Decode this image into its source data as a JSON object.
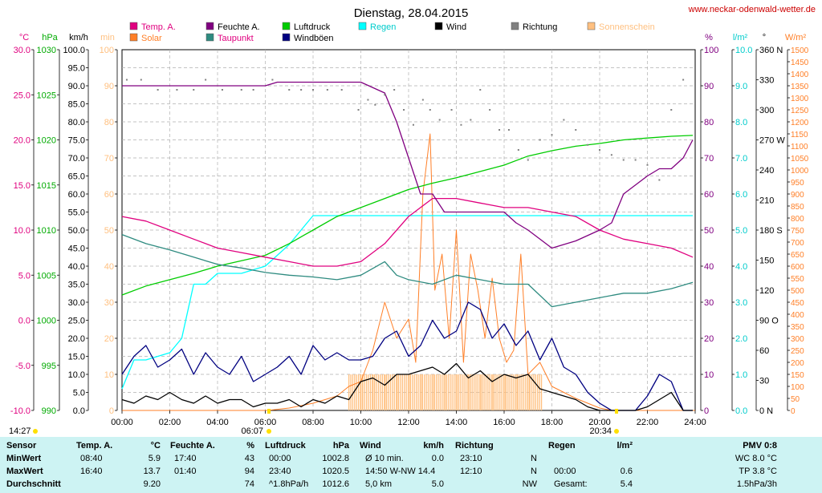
{
  "title": "Dienstag, 28.04.2015",
  "site": "www.neckar-odenwald-wetter.de",
  "axis_units": [
    "°C",
    "hPa",
    "km/h",
    "min",
    "%",
    "l/m²",
    "°",
    "W/m²"
  ],
  "legend": [
    {
      "label": "Temp. A.",
      "color": "#e0007f"
    },
    {
      "label": "Solar",
      "color": "#ff7f27"
    },
    {
      "label": "Feuchte A.",
      "color": "#800080"
    },
    {
      "label": "Taupunkt",
      "color": "#2e8b80"
    },
    {
      "label": "Luftdruck",
      "color": "#00cc00"
    },
    {
      "label": "Windböen",
      "color": "#000080"
    },
    {
      "label": "Regen",
      "color": "#00ffff"
    },
    {
      "label": "Wind",
      "color": "#000000"
    },
    {
      "label": "Richtung",
      "color": "#808080"
    },
    {
      "label": "Sonnenschein",
      "color": "#ffc080"
    }
  ],
  "sunrise": "06:07",
  "sunset": "20:34",
  "start_time": "14:27",
  "chart_data": {
    "type": "line",
    "x_unit": "time of day",
    "x_ticks": [
      "00:00",
      "02:00",
      "04:00",
      "06:00",
      "08:00",
      "10:00",
      "12:00",
      "14:00",
      "16:00",
      "18:00",
      "20:00",
      "22:00",
      "24:00"
    ],
    "left_axes": [
      {
        "unit": "°C",
        "ticks": [
          "30.0",
          "25.0",
          "20.0",
          "15.0",
          "10.0",
          "5.0",
          "0.0",
          "-5.0",
          "-10.0"
        ],
        "color": "#e0007f"
      },
      {
        "unit": "hPa",
        "ticks": [
          "1030",
          "1025",
          "1020",
          "1015",
          "1010",
          "1005",
          "1000",
          "995",
          "990"
        ],
        "color": "#00aa00"
      },
      {
        "unit": "km/h",
        "ticks": [
          "100.0",
          "95.0",
          "90.0",
          "85.0",
          "80.0",
          "75.0",
          "70.0",
          "65.0",
          "60.0",
          "55.0",
          "50.0",
          "45.0",
          "40.0",
          "35.0",
          "30.0",
          "25.0",
          "20.0",
          "15.0",
          "10.0",
          "5.0",
          "0.0"
        ],
        "color": "#000000"
      },
      {
        "unit": "min",
        "ticks": [
          "100",
          "90",
          "80",
          "70",
          "60",
          "50",
          "40",
          "30",
          "20",
          "10",
          "0"
        ],
        "color": "#ffc080"
      }
    ],
    "right_axes": [
      {
        "unit": "%",
        "ticks": [
          "100",
          "90",
          "80",
          "70",
          "60",
          "50",
          "40",
          "30",
          "20",
          "10",
          "0"
        ],
        "color": "#800080"
      },
      {
        "unit": "l/m²",
        "ticks": [
          "10.0",
          "9.0",
          "8.0",
          "7.0",
          "6.0",
          "5.0",
          "4.0",
          "3.0",
          "2.0",
          "1.0",
          "0.0"
        ],
        "color": "#00cccc"
      },
      {
        "unit": "°",
        "ticks": [
          "360 N",
          "330",
          "300",
          "270 W",
          "240",
          "210",
          "180 S",
          "150",
          "120",
          "90 O",
          "60",
          "30",
          "0 N"
        ],
        "color": "#000000"
      },
      {
        "unit": "W/m²",
        "ticks": [
          "1500",
          "1450",
          "1400",
          "1350",
          "1300",
          "1250",
          "1200",
          "1150",
          "1100",
          "1050",
          "1000",
          "950",
          "900",
          "850",
          "800",
          "750",
          "700",
          "650",
          "600",
          "550",
          "500",
          "450",
          "400",
          "350",
          "300",
          "250",
          "200",
          "150",
          "100",
          "50",
          "0"
        ],
        "color": "#ff7f27"
      }
    ],
    "series": [
      {
        "name": "Temp. A.",
        "unit": "°C",
        "color": "#e0007f",
        "x": [
          0,
          1,
          2,
          3,
          4,
          5,
          6,
          7,
          8,
          9,
          10,
          11,
          12,
          13,
          14,
          15,
          16,
          17,
          18,
          19,
          20,
          21,
          22,
          23,
          23.9
        ],
        "y": [
          11.5,
          11.0,
          10.0,
          9.0,
          8.0,
          7.5,
          7.0,
          6.5,
          6.0,
          6.0,
          6.5,
          8.5,
          11.5,
          13.5,
          13.5,
          13.0,
          12.5,
          12.5,
          12.0,
          11.5,
          10.0,
          9.0,
          8.5,
          8.0,
          7.0
        ]
      },
      {
        "name": "Taupunkt",
        "unit": "°C",
        "color": "#2e8b80",
        "x": [
          0,
          1,
          2,
          3,
          4,
          5,
          6,
          7,
          8,
          9,
          10,
          11,
          11.5,
          12,
          13,
          14,
          15,
          16,
          17,
          18,
          19,
          20,
          21,
          22,
          23,
          23.9
        ],
        "y": [
          9.5,
          8.5,
          7.8,
          7.0,
          6.2,
          5.8,
          5.3,
          5.0,
          4.8,
          4.5,
          5.0,
          6.5,
          5.0,
          4.5,
          4.0,
          5.0,
          4.5,
          4.0,
          4.0,
          1.5,
          2.0,
          2.5,
          3.0,
          3.0,
          3.5,
          4.2
        ]
      },
      {
        "name": "Feuchte A.",
        "unit": "%",
        "color": "#800080",
        "x": [
          0,
          1,
          1.9,
          2.5,
          3,
          4,
          5,
          6,
          6.5,
          7,
          8,
          9,
          10,
          11,
          11.5,
          12,
          12.5,
          13,
          13.5,
          14,
          15,
          16,
          16.5,
          17,
          18,
          19,
          20,
          20.5,
          21,
          22,
          22.5,
          23,
          23.5,
          23.9
        ],
        "y": [
          90,
          90,
          90,
          90,
          90,
          90,
          90,
          90,
          91,
          91,
          91,
          91,
          91,
          88,
          80,
          70,
          60,
          60,
          55,
          55,
          55,
          55,
          52,
          50,
          45,
          47,
          50,
          52,
          60,
          65,
          67,
          67,
          70,
          75
        ]
      },
      {
        "name": "Luftdruck",
        "unit": "hPa",
        "color": "#00cc00",
        "x": [
          0,
          1,
          2,
          3,
          4,
          5,
          6,
          7,
          8,
          9,
          10,
          11,
          12,
          13,
          14,
          15,
          16,
          17,
          18,
          19,
          20,
          21,
          22,
          23,
          23.9
        ],
        "y": [
          1002.8,
          1003.8,
          1004.5,
          1005.2,
          1006.0,
          1006.6,
          1007.2,
          1008.5,
          1010.0,
          1011.5,
          1012.5,
          1013.5,
          1014.5,
          1015.2,
          1015.8,
          1016.5,
          1017.2,
          1018.2,
          1018.8,
          1019.3,
          1019.6,
          1020.0,
          1020.2,
          1020.4,
          1020.5
        ]
      },
      {
        "name": "Regen",
        "unit": "l/m²",
        "color": "#00ffff",
        "x": [
          0,
          0.5,
          1,
          2,
          2.5,
          3,
          3.5,
          4,
          5,
          6,
          7,
          7.5,
          8,
          9,
          10,
          11,
          12,
          13,
          14,
          15,
          16,
          17,
          18,
          19,
          20,
          21,
          22,
          23,
          23.9
        ],
        "y": [
          0.6,
          1.4,
          1.4,
          1.6,
          2.0,
          3.5,
          3.5,
          3.8,
          3.8,
          4.0,
          4.6,
          5.0,
          5.4,
          5.4,
          5.4,
          5.4,
          5.4,
          5.4,
          5.4,
          5.4,
          5.4,
          5.4,
          5.4,
          5.4,
          5.4,
          5.4,
          5.4,
          5.4,
          5.4
        ]
      },
      {
        "name": "Windböen",
        "unit": "km/h",
        "color": "#000080",
        "x": [
          0,
          0.5,
          1,
          1.5,
          2,
          2.5,
          3,
          3.5,
          4,
          4.5,
          5,
          5.5,
          6,
          6.5,
          7,
          7.5,
          8,
          8.5,
          9,
          9.5,
          10,
          10.5,
          11,
          11.5,
          12,
          12.5,
          13,
          13.5,
          14,
          14.5,
          15,
          15.5,
          16,
          16.5,
          17,
          17.5,
          18,
          18.5,
          19,
          19.5,
          20,
          20.5,
          21,
          21.5,
          22,
          22.5,
          23,
          23.5,
          23.9
        ],
        "y": [
          10,
          15,
          18,
          12,
          14,
          17,
          10,
          16,
          12,
          10,
          15,
          8,
          10,
          12,
          15,
          10,
          18,
          14,
          16,
          14,
          14,
          15,
          20,
          22,
          15,
          18,
          25,
          20,
          22,
          30,
          28,
          20,
          24,
          18,
          22,
          14,
          20,
          12,
          10,
          5,
          2,
          0,
          0,
          0,
          4,
          10,
          8,
          0,
          0
        ]
      },
      {
        "name": "Wind",
        "unit": "km/h",
        "color": "#000000",
        "x": [
          0,
          0.5,
          1,
          1.5,
          2,
          2.5,
          3,
          3.5,
          4,
          4.5,
          5,
          5.5,
          6,
          6.5,
          7,
          7.5,
          8,
          8.5,
          9,
          9.5,
          10,
          10.5,
          11,
          11.5,
          12,
          12.5,
          13,
          13.5,
          14,
          14.5,
          15,
          15.5,
          16,
          16.5,
          17,
          17.5,
          18,
          18.5,
          19,
          19.5,
          20,
          20.5,
          21,
          21.5,
          22,
          22.5,
          23,
          23.5,
          23.9
        ],
        "y": [
          3,
          2,
          4,
          3,
          5,
          3,
          2,
          4,
          2,
          3,
          3,
          1,
          2,
          2,
          3,
          1,
          3,
          2,
          4,
          3,
          8,
          9,
          7,
          10,
          10,
          11,
          12,
          10,
          13,
          9,
          11,
          8,
          10,
          9,
          10,
          6,
          5,
          4,
          3,
          1,
          0,
          0,
          0,
          0,
          1,
          3,
          5,
          0,
          0
        ]
      },
      {
        "name": "Solar",
        "unit": "W/m²",
        "color": "#ff7f27",
        "x": [
          0,
          6.1,
          7,
          8,
          9,
          9.5,
          10,
          10.5,
          11,
          11.5,
          12,
          12.3,
          12.6,
          12.9,
          13.1,
          13.4,
          13.7,
          14,
          14.3,
          14.6,
          14.9,
          15.2,
          15.5,
          15.8,
          16.1,
          16.4,
          16.7,
          17,
          17.5,
          18,
          19,
          20,
          20.5,
          24
        ],
        "y": [
          0,
          0,
          10,
          30,
          60,
          100,
          120,
          250,
          450,
          300,
          380,
          200,
          900,
          1150,
          500,
          650,
          300,
          750,
          200,
          650,
          500,
          300,
          550,
          300,
          200,
          250,
          650,
          150,
          200,
          100,
          50,
          10,
          0,
          0
        ]
      },
      {
        "name": "Sonnenschein",
        "unit": "min",
        "color": "#ffc080",
        "type": "bar",
        "x": [
          9.5,
          10,
          10.5,
          11,
          11.5,
          12,
          12.5,
          13,
          13.5,
          14,
          14.5,
          15,
          15.5,
          16,
          16.5,
          17
        ],
        "y": [
          10,
          10,
          10,
          10,
          10,
          10,
          10,
          10,
          10,
          10,
          10,
          10,
          10,
          10,
          10,
          10
        ]
      },
      {
        "name": "Richtung",
        "unit": "°",
        "color": "#808080",
        "type": "scatter",
        "x": [
          0.2,
          0.8,
          1.5,
          2.3,
          3,
          3.5,
          4.2,
          5,
          5.5,
          6.3,
          7,
          7.5,
          8,
          8.6,
          9.2,
          9.9,
          10.3,
          10.6,
          11.0,
          11.4,
          11.8,
          12.2,
          12.6,
          12.9,
          13.3,
          13.8,
          14.2,
          14.6,
          15,
          15.4,
          15.8,
          16.2,
          16.6,
          17,
          17.5,
          18,
          18.5,
          19,
          19.5,
          20,
          20.5,
          21,
          21.5,
          22,
          22.5,
          23,
          23.5
        ],
        "y": [
          330,
          330,
          320,
          320,
          320,
          330,
          320,
          320,
          320,
          330,
          320,
          320,
          320,
          320,
          320,
          300,
          310,
          305,
          315,
          320,
          300,
          285,
          310,
          300,
          290,
          300,
          285,
          290,
          320,
          300,
          280,
          280,
          260,
          250,
          270,
          275,
          290,
          280,
          265,
          260,
          255,
          250,
          250,
          245,
          230,
          300,
          330
        ]
      }
    ]
  },
  "stats": {
    "headers": {
      "sensor": "Sensor",
      "temp": "Temp. A.",
      "temp_unit": "°C",
      "feuchte": "Feuchte A.",
      "feuchte_unit": "%",
      "luftdruck": "Luftdruck",
      "luftdruck_unit": "hPa",
      "wind": "Wind",
      "wind_unit": "km/h",
      "richtung": "Richtung",
      "regen": "Regen",
      "regen_unit": "l/m²",
      "pmv": "PMV 0:8"
    },
    "rows": [
      {
        "label": "MinWert",
        "temp_time": "08:40",
        "temp_val": "5.9",
        "feuchte_time": "17:40",
        "feuchte_val": "43",
        "druck_time": "00:00",
        "druck_val": "1002.8",
        "wind_label": "Ø 10 min.",
        "wind_val": "0.0",
        "richtung_time": "23:10",
        "richtung_val": "N",
        "regen_time": "",
        "regen_val": "",
        "pmv": "WC 8.0 °C"
      },
      {
        "label": "MaxWert",
        "temp_time": "16:40",
        "temp_val": "13.7",
        "feuchte_time": "01:40",
        "feuchte_val": "94",
        "druck_time": "23:40",
        "druck_val": "1020.5",
        "wind_label": "14:50   W-NW 14.4",
        "wind_val": "",
        "richtung_time": "12:10",
        "richtung_val": "N",
        "regen_time": "00:00",
        "regen_val": "0.6",
        "pmv": "TP 3.8 °C"
      },
      {
        "label": "Durchschnitt",
        "temp_time": "",
        "temp_val": "9.20",
        "feuchte_time": "",
        "feuchte_val": "74",
        "druck_time": "^1.8hPa/h",
        "druck_val": "1012.6",
        "wind_label": "5,0 km",
        "wind_val": "5.0",
        "richtung_time": "",
        "richtung_val": "NW",
        "regen_time": "Gesamt:",
        "regen_val": "5.4",
        "pmv": "1.5hPa/3h"
      }
    ]
  }
}
